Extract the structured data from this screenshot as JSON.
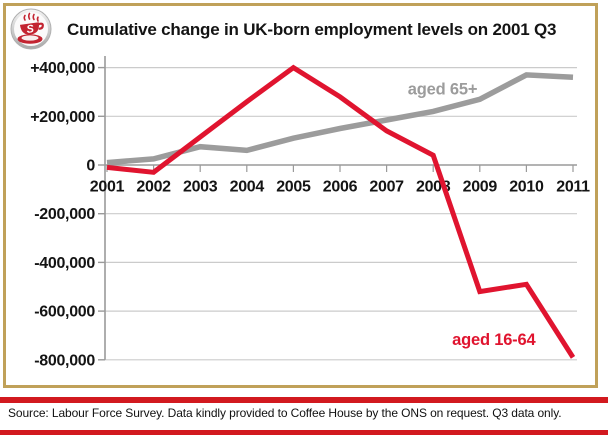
{
  "header": {
    "title": "Cumulative change in UK-born employment levels on 2001 Q3",
    "logo": "coffee-house-cup-logo"
  },
  "chart_data": {
    "type": "line",
    "title": "Cumulative change in UK-born employment levels on 2001 Q3",
    "x": [
      2001,
      2002,
      2003,
      2004,
      2005,
      2006,
      2007,
      2008,
      2009,
      2010,
      2011
    ],
    "ylim": [
      -800000,
      445000
    ],
    "grid": true,
    "legend_position": "inline-labels",
    "yticks": [
      {
        "value": 400000,
        "label": "+400,000"
      },
      {
        "value": 200000,
        "label": "+200,000"
      },
      {
        "value": 0,
        "label": "0"
      },
      {
        "value": -200000,
        "label": "-200,000"
      },
      {
        "value": -400000,
        "label": "-400,000"
      },
      {
        "value": -600000,
        "label": "-600,000"
      },
      {
        "value": -800000,
        "label": "-800,000"
      }
    ],
    "series": [
      {
        "name": "aged 65+",
        "color": "#9c9c9c",
        "width": 5.5,
        "values": [
          10000,
          25000,
          75000,
          60000,
          110000,
          150000,
          185000,
          220000,
          270000,
          370000,
          360000
        ]
      },
      {
        "name": "aged 16-64",
        "color": "#e0142f",
        "width": 5,
        "values": [
          -10000,
          -30000,
          115000,
          260000,
          400000,
          280000,
          140000,
          40000,
          -520000,
          -490000,
          -790000
        ]
      }
    ],
    "annotations": [
      {
        "text": "aged 65+",
        "year": 2008.2,
        "value": 290000,
        "color": "#9c9c9c"
      },
      {
        "text": "aged 16-64",
        "year": 2009.3,
        "value": -740000,
        "color": "#e0142f"
      }
    ]
  },
  "footer": {
    "source": "Source: Labour Force Survey. Data kindly provided to Coffee House by the ONS on request. Q3 data only."
  },
  "colors": {
    "frame_gold": "#c0a159",
    "series_red": "#e0142f",
    "series_gray": "#9c9c9c",
    "footer_rule_red": "#d2191f",
    "gridline": "#cbcbcb",
    "axis": "#9a9a9a"
  }
}
